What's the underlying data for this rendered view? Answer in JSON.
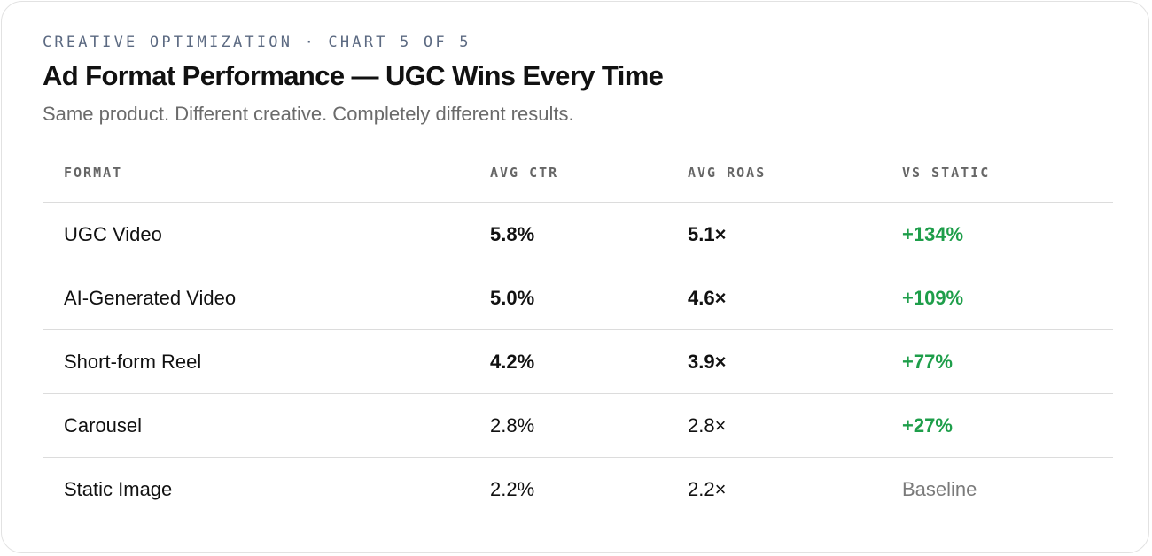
{
  "header": {
    "eyebrow": "CREATIVE OPTIMIZATION · CHART 5 OF 5",
    "title": "Ad Format Performance — UGC Wins Every Time",
    "subtitle": "Same product. Different creative. Completely different results."
  },
  "colors": {
    "positive": "#1e9e4a",
    "muted": "#7a7a7a",
    "eyebrow": "#5c6a82"
  },
  "chart_data": {
    "type": "table",
    "columns": [
      "FORMAT",
      "AVG CTR",
      "AVG ROAS",
      "VS STATIC"
    ],
    "rows": [
      {
        "format": "UGC Video",
        "ctr": "5.8%",
        "roas": "5.1×",
        "vs_static": "+134%",
        "emphasis": true,
        "positive": true
      },
      {
        "format": "AI-Generated Video",
        "ctr": "5.0%",
        "roas": "4.6×",
        "vs_static": "+109%",
        "emphasis": true,
        "positive": true
      },
      {
        "format": "Short-form Reel",
        "ctr": "4.2%",
        "roas": "3.9×",
        "vs_static": "+77%",
        "emphasis": true,
        "positive": true
      },
      {
        "format": "Carousel",
        "ctr": "2.8%",
        "roas": "2.8×",
        "vs_static": "+27%",
        "emphasis": false,
        "positive": true
      },
      {
        "format": "Static Image",
        "ctr": "2.2%",
        "roas": "2.2×",
        "vs_static": "Baseline",
        "emphasis": false,
        "positive": false
      }
    ]
  }
}
